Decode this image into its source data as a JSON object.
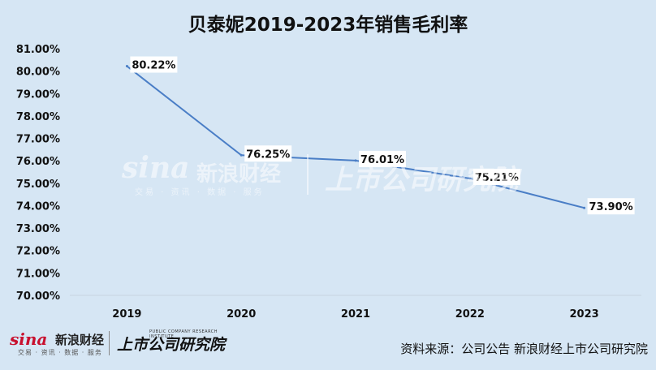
{
  "chart_data": {
    "type": "line",
    "title": "贝泰妮2019-2023年销售毛利率",
    "categories": [
      "2019",
      "2020",
      "2021",
      "2022",
      "2023"
    ],
    "series": [
      {
        "values": [
          80.22,
          76.25,
          76.01,
          75.21,
          73.9
        ]
      }
    ],
    "data_labels": [
      "80.22%",
      "76.25%",
      "76.01%",
      "75.21%",
      "73.90%"
    ],
    "ylim": [
      70,
      81
    ],
    "yticks": [
      70,
      71,
      72,
      73,
      74,
      75,
      76,
      77,
      78,
      79,
      80,
      81
    ],
    "ytick_labels": [
      "70.00%",
      "71.00%",
      "72.00%",
      "73.00%",
      "74.00%",
      "75.00%",
      "76.00%",
      "77.00%",
      "78.00%",
      "79.00%",
      "80.00%",
      "81.00%"
    ],
    "grid": false,
    "line_color": "#4a7ec6"
  },
  "footer": {
    "source": "资料来源：公司公告 新浪财经上市公司研究院"
  },
  "logo": {
    "sina": "sina",
    "brand": "新浪财经",
    "tagline": "交易 · 资讯 · 数据 · 服务",
    "research": "上市公司研究院",
    "research_en": "PUBLIC COMPANY RESEARCH INSTITUTE"
  }
}
